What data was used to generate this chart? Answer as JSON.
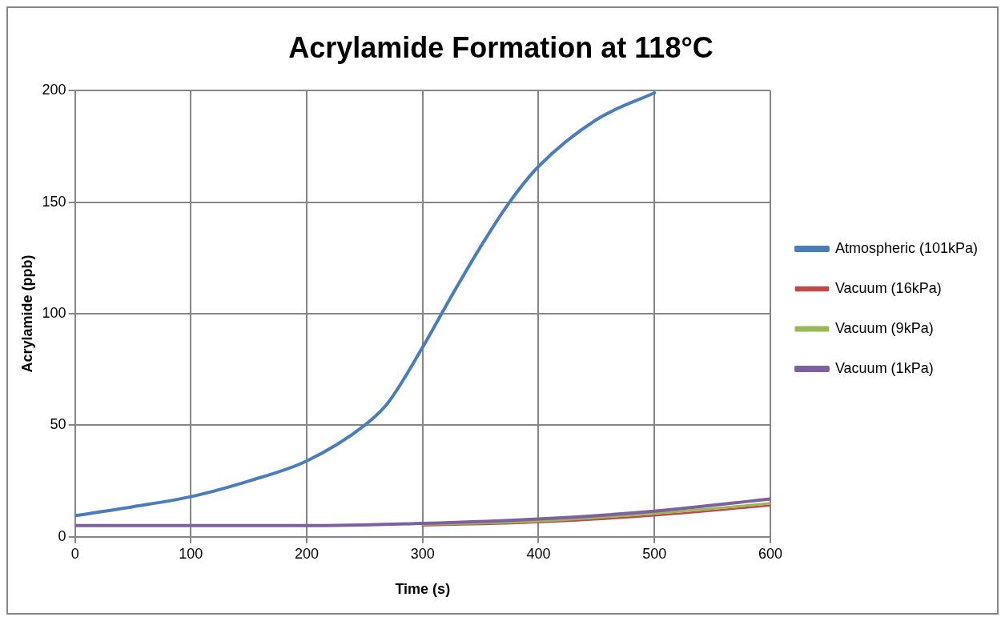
{
  "chart_data": {
    "type": "line",
    "title": "Acrylamide Formation at 118°C",
    "xlabel": "Time (s)",
    "ylabel": "Acrylamide (ppb)",
    "xlim": [
      0,
      600
    ],
    "xticks": [
      0,
      100,
      200,
      300,
      400,
      500,
      600
    ],
    "ylim": [
      0,
      200
    ],
    "yticks": [
      0,
      50,
      100,
      150,
      200
    ],
    "grid": true,
    "legend": "right",
    "marker": "none",
    "line_style": "solid",
    "series": [
      {
        "name": "Atmospheric (101kPa)",
        "color": "#4a7ebb",
        "x": [
          0,
          50,
          100,
          150,
          200,
          250,
          270,
          300,
          325,
          350,
          375,
          400,
          450,
          500
        ],
        "values": [
          9.5,
          13.5,
          18,
          25,
          34,
          50,
          60,
          85,
          108,
          130,
          150,
          166,
          187,
          199
        ]
      },
      {
        "name": "Vacuum (16kPa)",
        "color": "#be4b48",
        "x": [
          300,
          400,
          500,
          600
        ],
        "values": [
          5,
          6.5,
          9.5,
          14
        ]
      },
      {
        "name": "Vacuum (9kPa)",
        "color": "#98b954",
        "x": [
          300,
          400,
          500,
          600
        ],
        "values": [
          5.5,
          7,
          10.5,
          15
        ]
      },
      {
        "name": "Vacuum (1kPa)",
        "color": "#7d60a0",
        "x": [
          0,
          100,
          200,
          300,
          400,
          500,
          600
        ],
        "values": [
          5,
          5,
          5,
          6,
          8,
          11.5,
          17
        ]
      }
    ]
  }
}
